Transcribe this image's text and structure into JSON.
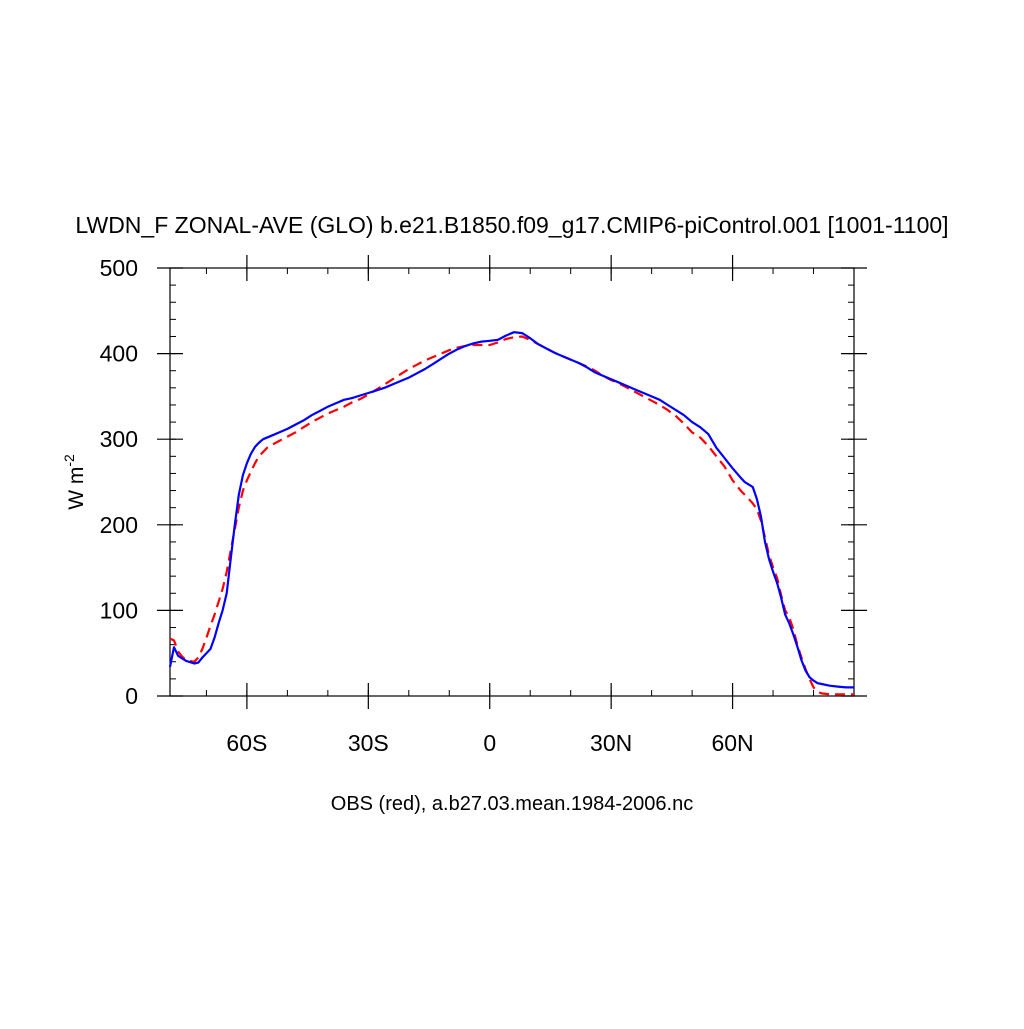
{
  "chart_data": {
    "type": "line",
    "title": "LWDN_F ZONAL-AVE (GLO) b.e21.B1850.f09_g17.CMIP6-piControl.001 [1001-1100]",
    "ylabel_base": "W m",
    "ylabel_exp": "-2",
    "xlabel": "OBS (red), a.b27.03.mean.1984-2006.nc",
    "xlim": [
      -79,
      90
    ],
    "ylim": [
      0,
      500
    ],
    "yticks": [
      0,
      100,
      200,
      300,
      400,
      500
    ],
    "yticklabels": [
      "0",
      "100",
      "200",
      "300",
      "400",
      "500"
    ],
    "xticks": [
      -60,
      -30,
      0,
      30,
      60
    ],
    "xticklabels": [
      "60S",
      "30S",
      "0",
      "30N",
      "60N"
    ],
    "x_minor_step": 10,
    "y_minor_step": 20,
    "grid": false,
    "series": [
      {
        "color": "#0000ff",
        "style": "solid",
        "points": [
          [
            -79,
            34
          ],
          [
            -78,
            57
          ],
          [
            -77,
            47
          ],
          [
            -75,
            41
          ],
          [
            -73,
            38
          ],
          [
            -72,
            39
          ],
          [
            -71,
            45
          ],
          [
            -70,
            50
          ],
          [
            -69,
            55
          ],
          [
            -68,
            68
          ],
          [
            -67,
            85
          ],
          [
            -66,
            100
          ],
          [
            -65,
            120
          ],
          [
            -64,
            160
          ],
          [
            -63,
            200
          ],
          [
            -62,
            235
          ],
          [
            -61,
            258
          ],
          [
            -60,
            272
          ],
          [
            -59,
            283
          ],
          [
            -58,
            291
          ],
          [
            -57,
            296
          ],
          [
            -56,
            300
          ],
          [
            -54,
            304
          ],
          [
            -52,
            308
          ],
          [
            -50,
            312
          ],
          [
            -48,
            317
          ],
          [
            -46,
            322
          ],
          [
            -44,
            328
          ],
          [
            -42,
            333
          ],
          [
            -40,
            338
          ],
          [
            -38,
            342
          ],
          [
            -36,
            346
          ],
          [
            -34,
            348
          ],
          [
            -32,
            351
          ],
          [
            -30,
            354
          ],
          [
            -28,
            357
          ],
          [
            -26,
            360
          ],
          [
            -24,
            364
          ],
          [
            -22,
            368
          ],
          [
            -20,
            372
          ],
          [
            -18,
            377
          ],
          [
            -16,
            382
          ],
          [
            -14,
            388
          ],
          [
            -12,
            394
          ],
          [
            -10,
            400
          ],
          [
            -8,
            405
          ],
          [
            -6,
            409
          ],
          [
            -4,
            412
          ],
          [
            -2,
            414
          ],
          [
            0,
            415
          ],
          [
            2,
            416
          ],
          [
            4,
            421
          ],
          [
            6,
            425
          ],
          [
            8,
            424
          ],
          [
            10,
            418
          ],
          [
            12,
            411
          ],
          [
            14,
            406
          ],
          [
            16,
            401
          ],
          [
            18,
            397
          ],
          [
            20,
            393
          ],
          [
            22,
            389
          ],
          [
            24,
            384
          ],
          [
            26,
            378
          ],
          [
            28,
            374
          ],
          [
            30,
            370
          ],
          [
            32,
            366
          ],
          [
            34,
            362
          ],
          [
            36,
            358
          ],
          [
            38,
            354
          ],
          [
            40,
            350
          ],
          [
            42,
            346
          ],
          [
            44,
            340
          ],
          [
            46,
            334
          ],
          [
            48,
            328
          ],
          [
            50,
            320
          ],
          [
            52,
            314
          ],
          [
            54,
            306
          ],
          [
            56,
            290
          ],
          [
            58,
            278
          ],
          [
            60,
            266
          ],
          [
            62,
            255
          ],
          [
            63,
            250
          ],
          [
            64,
            247
          ],
          [
            65,
            244
          ],
          [
            66,
            230
          ],
          [
            67,
            210
          ],
          [
            68,
            180
          ],
          [
            69,
            160
          ],
          [
            70,
            145
          ],
          [
            71,
            132
          ],
          [
            72,
            115
          ],
          [
            73,
            95
          ],
          [
            74,
            85
          ],
          [
            75,
            72
          ],
          [
            76,
            58
          ],
          [
            77,
            42
          ],
          [
            78,
            30
          ],
          [
            79,
            22
          ],
          [
            80,
            18
          ],
          [
            81,
            15
          ],
          [
            82,
            14
          ],
          [
            84,
            12
          ],
          [
            86,
            11
          ],
          [
            88,
            10
          ],
          [
            90,
            10
          ]
        ]
      },
      {
        "color": "#ff0000",
        "style": "dashed",
        "points": [
          [
            -79,
            67
          ],
          [
            -78,
            65
          ],
          [
            -77,
            52
          ],
          [
            -76,
            46
          ],
          [
            -75,
            42
          ],
          [
            -74,
            41
          ],
          [
            -73,
            40
          ],
          [
            -72,
            45
          ],
          [
            -71,
            55
          ],
          [
            -70,
            68
          ],
          [
            -69,
            82
          ],
          [
            -68,
            95
          ],
          [
            -67,
            110
          ],
          [
            -66,
            125
          ],
          [
            -65,
            145
          ],
          [
            -64,
            170
          ],
          [
            -63,
            195
          ],
          [
            -62,
            220
          ],
          [
            -61,
            240
          ],
          [
            -60,
            252
          ],
          [
            -59,
            262
          ],
          [
            -58,
            272
          ],
          [
            -57,
            280
          ],
          [
            -56,
            285
          ],
          [
            -55,
            290
          ],
          [
            -54,
            293
          ],
          [
            -52,
            298
          ],
          [
            -50,
            303
          ],
          [
            -48,
            308
          ],
          [
            -46,
            314
          ],
          [
            -44,
            320
          ],
          [
            -42,
            325
          ],
          [
            -40,
            330
          ],
          [
            -38,
            334
          ],
          [
            -36,
            338
          ],
          [
            -34,
            343
          ],
          [
            -32,
            347
          ],
          [
            -30,
            352
          ],
          [
            -28,
            358
          ],
          [
            -26,
            364
          ],
          [
            -24,
            370
          ],
          [
            -22,
            376
          ],
          [
            -20,
            382
          ],
          [
            -18,
            387
          ],
          [
            -16,
            392
          ],
          [
            -14,
            396
          ],
          [
            -12,
            400
          ],
          [
            -10,
            404
          ],
          [
            -8,
            407
          ],
          [
            -6,
            409
          ],
          [
            -4,
            410
          ],
          [
            -2,
            410
          ],
          [
            0,
            410
          ],
          [
            2,
            413
          ],
          [
            4,
            417
          ],
          [
            6,
            419
          ],
          [
            8,
            420
          ],
          [
            10,
            416
          ],
          [
            12,
            411
          ],
          [
            14,
            406
          ],
          [
            16,
            401
          ],
          [
            18,
            397
          ],
          [
            20,
            393
          ],
          [
            22,
            389
          ],
          [
            24,
            385
          ],
          [
            26,
            380
          ],
          [
            28,
            374
          ],
          [
            30,
            369
          ],
          [
            32,
            365
          ],
          [
            34,
            360
          ],
          [
            36,
            355
          ],
          [
            38,
            350
          ],
          [
            40,
            345
          ],
          [
            42,
            340
          ],
          [
            44,
            334
          ],
          [
            46,
            327
          ],
          [
            48,
            318
          ],
          [
            50,
            308
          ],
          [
            52,
            302
          ],
          [
            54,
            292
          ],
          [
            56,
            280
          ],
          [
            58,
            268
          ],
          [
            60,
            252
          ],
          [
            62,
            240
          ],
          [
            64,
            230
          ],
          [
            65,
            225
          ],
          [
            66,
            218
          ],
          [
            67,
            205
          ],
          [
            68,
            185
          ],
          [
            69,
            165
          ],
          [
            70,
            150
          ],
          [
            71,
            138
          ],
          [
            72,
            118
          ],
          [
            73,
            100
          ],
          [
            74,
            92
          ],
          [
            75,
            78
          ],
          [
            76,
            60
          ],
          [
            77,
            45
          ],
          [
            78,
            32
          ],
          [
            79,
            20
          ],
          [
            80,
            10
          ],
          [
            81,
            5
          ],
          [
            82,
            3
          ],
          [
            84,
            2
          ],
          [
            86,
            2
          ],
          [
            88,
            2
          ],
          [
            90,
            2
          ]
        ]
      }
    ]
  }
}
